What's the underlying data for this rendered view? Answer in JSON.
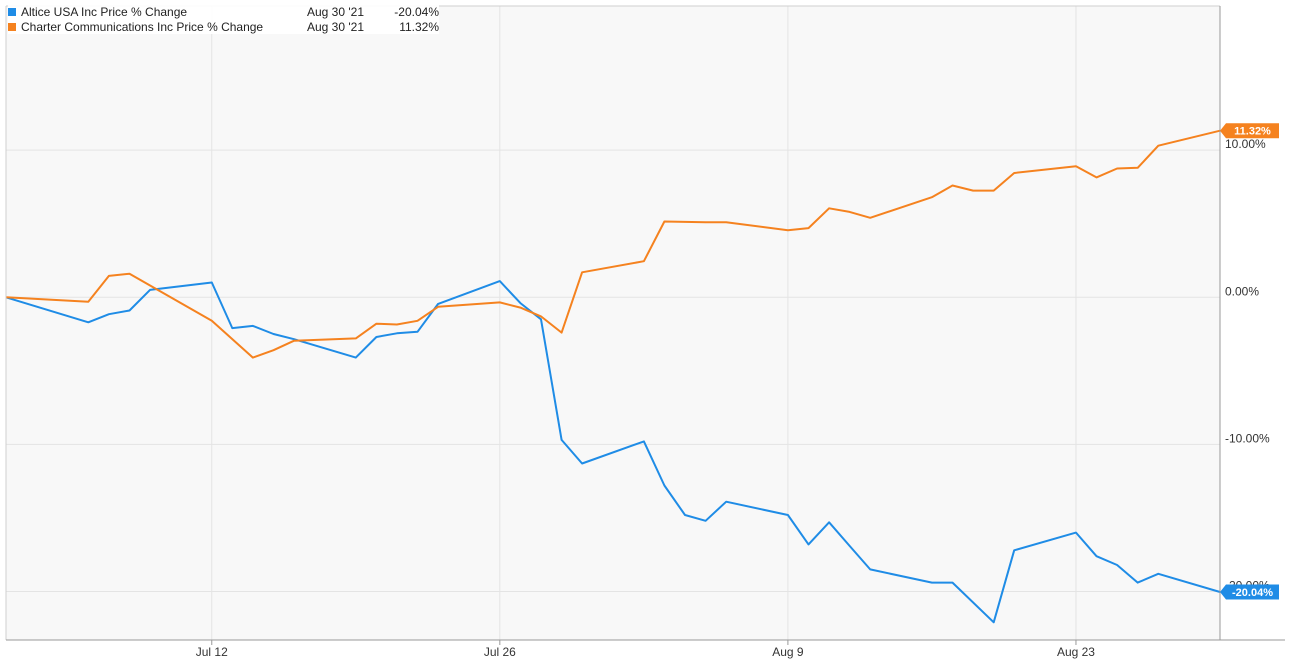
{
  "chart_data": {
    "type": "line",
    "title": "",
    "xlabel": "",
    "ylabel": "",
    "x_tick_labels": [
      "Jul 12",
      "Jul 26",
      "Aug 9",
      "Aug 23"
    ],
    "x_tick_dates": [
      "2021-07-12",
      "2021-07-26",
      "2021-08-09",
      "2021-08-23"
    ],
    "x_range": [
      "2021-07-02",
      "2021-08-30"
    ],
    "y_tick_labels": [
      "10.00%",
      "0.00%",
      "-10.00%",
      "-20.00%"
    ],
    "y_tick_values": [
      10,
      0,
      -10,
      -20
    ],
    "ylim": [
      -23.3,
      19.8
    ],
    "grid": true,
    "legend_position": "top-left",
    "series": [
      {
        "name": "Altice USA Inc Price % Change",
        "color": "#1f8ce6",
        "legend_date": "Aug 30 '21",
        "legend_value": "-20.04%",
        "end_label": "-20.04%",
        "points": [
          [
            "2021-07-02",
            0.0
          ],
          [
            "2021-07-06",
            -1.7
          ],
          [
            "2021-07-07",
            -1.15
          ],
          [
            "2021-07-08",
            -0.9
          ],
          [
            "2021-07-09",
            0.5
          ],
          [
            "2021-07-12",
            1.0
          ],
          [
            "2021-07-13",
            -2.1
          ],
          [
            "2021-07-14",
            -1.95
          ],
          [
            "2021-07-15",
            -2.5
          ],
          [
            "2021-07-16",
            -2.85
          ],
          [
            "2021-07-19",
            -4.1
          ],
          [
            "2021-07-20",
            -2.7
          ],
          [
            "2021-07-21",
            -2.45
          ],
          [
            "2021-07-22",
            -2.35
          ],
          [
            "2021-07-23",
            -0.45
          ],
          [
            "2021-07-26",
            1.1
          ],
          [
            "2021-07-27",
            -0.4
          ],
          [
            "2021-07-28",
            -1.5
          ],
          [
            "2021-07-29",
            -9.7
          ],
          [
            "2021-07-30",
            -11.3
          ],
          [
            "2021-08-02",
            -9.8
          ],
          [
            "2021-08-03",
            -12.8
          ],
          [
            "2021-08-04",
            -14.8
          ],
          [
            "2021-08-05",
            -15.2
          ],
          [
            "2021-08-06",
            -13.9
          ],
          [
            "2021-08-09",
            -14.8
          ],
          [
            "2021-08-10",
            -16.8
          ],
          [
            "2021-08-11",
            -15.3
          ],
          [
            "2021-08-12",
            -16.9
          ],
          [
            "2021-08-13",
            -18.5
          ],
          [
            "2021-08-16",
            -19.4
          ],
          [
            "2021-08-17",
            -19.4
          ],
          [
            "2021-08-19",
            -22.1
          ],
          [
            "2021-08-20",
            -17.2
          ],
          [
            "2021-08-23",
            -16.0
          ],
          [
            "2021-08-24",
            -17.6
          ],
          [
            "2021-08-25",
            -18.2
          ],
          [
            "2021-08-26",
            -19.4
          ],
          [
            "2021-08-27",
            -18.8
          ],
          [
            "2021-08-30",
            -20.04
          ]
        ]
      },
      {
        "name": "Charter Communications Inc Price % Change",
        "color": "#f5821f",
        "legend_date": "Aug 30 '21",
        "legend_value": "11.32%",
        "end_label": "11.32%",
        "points": [
          [
            "2021-07-02",
            0.0
          ],
          [
            "2021-07-06",
            -0.3
          ],
          [
            "2021-07-07",
            1.45
          ],
          [
            "2021-07-08",
            1.6
          ],
          [
            "2021-07-12",
            -1.6
          ],
          [
            "2021-07-14",
            -4.1
          ],
          [
            "2021-07-15",
            -3.6
          ],
          [
            "2021-07-16",
            -2.95
          ],
          [
            "2021-07-19",
            -2.8
          ],
          [
            "2021-07-20",
            -1.8
          ],
          [
            "2021-07-21",
            -1.85
          ],
          [
            "2021-07-22",
            -1.6
          ],
          [
            "2021-07-23",
            -0.65
          ],
          [
            "2021-07-26",
            -0.35
          ],
          [
            "2021-07-27",
            -0.7
          ],
          [
            "2021-07-28",
            -1.3
          ],
          [
            "2021-07-29",
            -2.4
          ],
          [
            "2021-07-30",
            1.7
          ],
          [
            "2021-08-02",
            2.45
          ],
          [
            "2021-08-03",
            5.15
          ],
          [
            "2021-08-05",
            5.1
          ],
          [
            "2021-08-06",
            5.1
          ],
          [
            "2021-08-09",
            4.55
          ],
          [
            "2021-08-10",
            4.7
          ],
          [
            "2021-08-11",
            6.05
          ],
          [
            "2021-08-12",
            5.8
          ],
          [
            "2021-08-13",
            5.4
          ],
          [
            "2021-08-16",
            6.8
          ],
          [
            "2021-08-17",
            7.6
          ],
          [
            "2021-08-18",
            7.25
          ],
          [
            "2021-08-19",
            7.25
          ],
          [
            "2021-08-20",
            8.45
          ],
          [
            "2021-08-23",
            8.9
          ],
          [
            "2021-08-24",
            8.15
          ],
          [
            "2021-08-25",
            8.75
          ],
          [
            "2021-08-26",
            8.8
          ],
          [
            "2021-08-27",
            10.3
          ],
          [
            "2021-08-30",
            11.32
          ]
        ]
      }
    ]
  }
}
